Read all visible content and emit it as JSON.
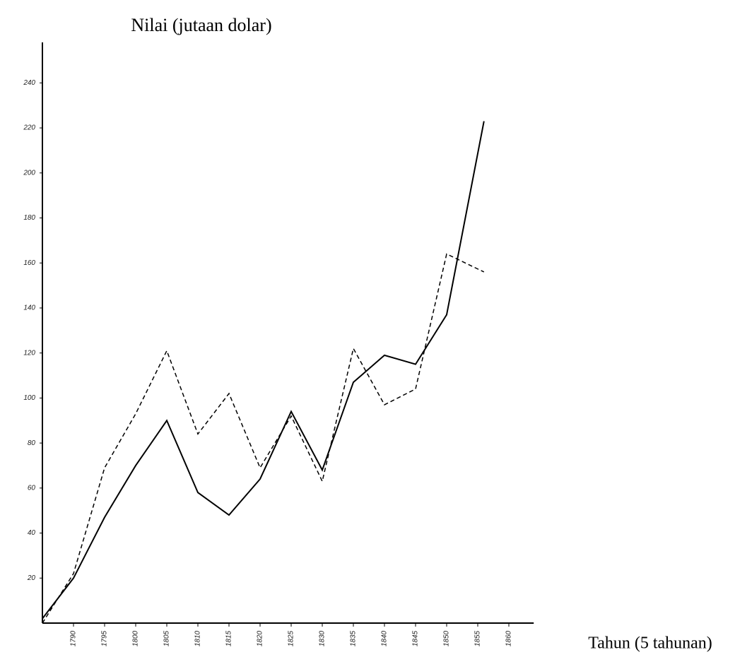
{
  "chart_data": {
    "type": "line",
    "title": "Nilai (jutaan dolar)",
    "x_label": "Tahun (5 tahunan)",
    "x": [
      1785,
      1790,
      1795,
      1800,
      1805,
      1810,
      1815,
      1820,
      1825,
      1830,
      1835,
      1840,
      1845,
      1850,
      1856
    ],
    "series": [
      {
        "color": "#000000",
        "dash": "solid",
        "values": [
          2,
          20,
          47,
          70,
          90,
          58,
          48,
          64,
          94,
          68,
          107,
          119,
          115,
          137,
          223
        ]
      },
      {
        "color": "#000000",
        "dash": "dashed",
        "values": [
          0,
          22,
          69,
          93,
          121,
          84,
          102,
          69,
          92,
          63,
          122,
          97,
          104,
          164,
          156
        ]
      }
    ],
    "xlim": [
      1785,
      1864
    ],
    "xticks": [
      1790,
      1795,
      1800,
      1805,
      1810,
      1815,
      1820,
      1825,
      1830,
      1835,
      1840,
      1845,
      1850,
      1855,
      1860
    ],
    "ylim": [
      0,
      258
    ],
    "yticks": [
      20,
      40,
      60,
      80,
      100,
      120,
      140,
      160,
      180,
      200,
      220,
      240
    ],
    "grid": false
  }
}
